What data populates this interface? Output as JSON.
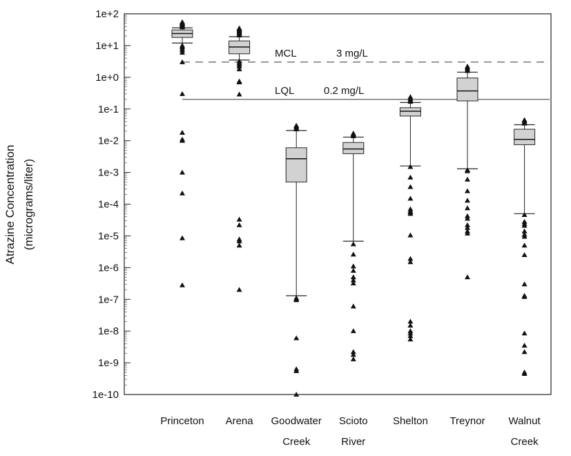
{
  "chart_data": {
    "type": "box",
    "ylabel": [
      "Atrazine Concentration",
      "(micrograms/liter)"
    ],
    "ylog": true,
    "ylim": [
      1e-10,
      100
    ],
    "yticks": [
      {
        "value": 100,
        "label": "1e+2"
      },
      {
        "value": 10,
        "label": "1e+1"
      },
      {
        "value": 1,
        "label": "1e+0"
      },
      {
        "value": 0.1,
        "label": "1e-1"
      },
      {
        "value": 0.01,
        "label": "1e-2"
      },
      {
        "value": 0.001,
        "label": "1e-3"
      },
      {
        "value": 0.0001,
        "label": "1e-4"
      },
      {
        "value": 1e-05,
        "label": "1e-5"
      },
      {
        "value": 1e-06,
        "label": "1e-6"
      },
      {
        "value": 1e-07,
        "label": "1e-7"
      },
      {
        "value": 1e-08,
        "label": "1e-8"
      },
      {
        "value": 1e-09,
        "label": "1e-9"
      },
      {
        "value": 1e-10,
        "label": "1e-10"
      }
    ],
    "reference_lines": [
      {
        "name": "MCL",
        "value_label": "3 mg/L",
        "y": 3,
        "style": "dashed",
        "x_start": "Princeton"
      },
      {
        "name": "LQL",
        "value_label": "0.2 mg/L",
        "y": 0.2,
        "style": "solid",
        "x_start": "Princeton"
      }
    ],
    "categories": [
      {
        "label": [
          "Princeton"
        ],
        "whisker_low": 12,
        "q1": 18,
        "median": 24,
        "q3": 31,
        "whisker_high": 36,
        "outliers_high": [
          38,
          40,
          42,
          45,
          48,
          50,
          52,
          55
        ],
        "outliers_low": [
          10,
          9,
          8,
          7,
          6,
          3,
          0.3,
          0.018,
          0.011,
          0.01,
          0.001,
          0.00022,
          8.5e-06,
          2.8e-07
        ]
      },
      {
        "label": [
          "Arena"
        ],
        "whisker_low": 3.5,
        "q1": 5.5,
        "median": 9,
        "q3": 14,
        "whisker_high": 19,
        "outliers_high": [
          21,
          23,
          25,
          27,
          29,
          31,
          33,
          35
        ],
        "outliers_low": [
          3.2,
          2.8,
          2.5,
          2.2,
          1.8,
          0.75,
          0.7,
          0.29,
          3.3e-05,
          2.2e-05,
          7.8e-06,
          6.8e-06,
          5e-06,
          2e-07
        ]
      },
      {
        "label": [
          "Goodwater",
          "Creek"
        ],
        "whisker_low": 1.3e-07,
        "q1": 0.0005,
        "median": 0.0027,
        "q3": 0.006,
        "whisker_high": 0.021,
        "outliers_high": [
          0.023,
          0.026,
          0.028,
          0.03
        ],
        "outliers_low": [
          1.1e-07,
          1e-07,
          9.5e-08,
          6e-09,
          6.3e-10,
          5.5e-10,
          1e-10
        ]
      },
      {
        "label": [
          "Scioto",
          "River"
        ],
        "whisker_low": 6.8e-06,
        "q1": 0.0039,
        "median": 0.0055,
        "q3": 0.0088,
        "whisker_high": 0.013,
        "outliers_high": [
          0.014,
          0.015,
          0.016,
          0.017
        ],
        "outliers_low": [
          5.5e-06,
          2.6e-06,
          1.1e-06,
          8e-07,
          5e-07,
          4e-07,
          3.2e-07,
          6e-08,
          1e-08,
          2.2e-09,
          1.8e-09,
          1.3e-09
        ]
      },
      {
        "label": [
          "Shelton"
        ],
        "whisker_low": 0.0016,
        "q1": 0.06,
        "median": 0.085,
        "q3": 0.11,
        "whisker_high": 0.16,
        "outliers_high": [
          0.17,
          0.19,
          0.21,
          0.24
        ],
        "outliers_low": [
          0.0015,
          0.0007,
          0.00035,
          0.00015,
          7e-05,
          6e-05,
          5.5e-05,
          5e-05,
          1.05e-05,
          1.9e-06,
          1.5e-06,
          2e-08,
          1.5e-08,
          1e-08,
          8.5e-09,
          7e-09,
          5.5e-09
        ]
      },
      {
        "label": [
          "Treynor"
        ],
        "whisker_low": 0.0013,
        "q1": 0.18,
        "median": 0.37,
        "q3": 0.95,
        "whisker_high": 1.45,
        "outliers_high": [
          1.6,
          1.8,
          2.0,
          2.2
        ],
        "outliers_low": [
          0.0012,
          0.0011,
          0.0006,
          0.00026,
          0.00013,
          7.5e-05,
          4.2e-05,
          3.5e-05,
          2.2e-05,
          1.8e-05,
          1.4e-05,
          1.2e-05,
          5e-07
        ]
      },
      {
        "label": [
          "Walnut",
          "Creek"
        ],
        "whisker_low": 5e-05,
        "q1": 0.0075,
        "median": 0.011,
        "q3": 0.023,
        "whisker_high": 0.032,
        "outliers_high": [
          0.035,
          0.038,
          0.042,
          0.045
        ],
        "outliers_low": [
          4.6e-05,
          2.8e-05,
          2.4e-05,
          2.1e-05,
          1.4e-05,
          1.1e-05,
          9.5e-06,
          5e-06,
          2.5e-06,
          3e-07,
          1.3e-07,
          1.2e-07,
          8.5e-09,
          3.5e-09,
          2.2e-09,
          5e-10,
          4.5e-10
        ]
      }
    ]
  }
}
